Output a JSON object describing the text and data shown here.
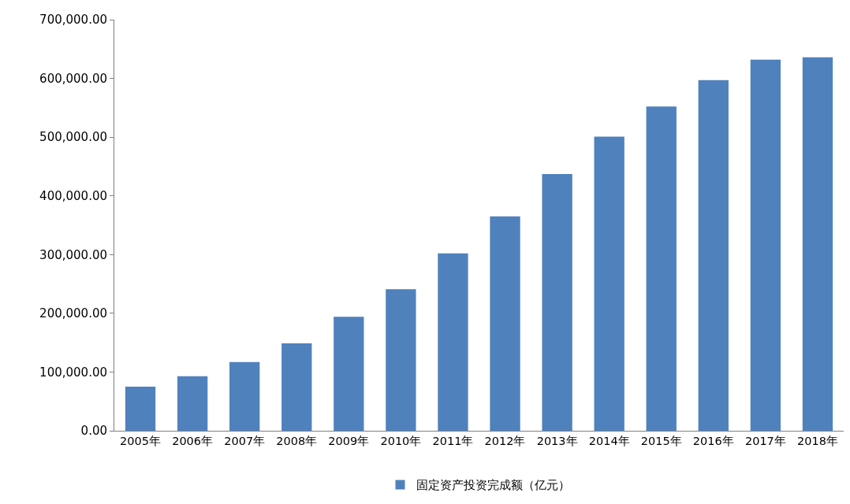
{
  "chart_data": {
    "type": "bar",
    "categories": [
      "2005年",
      "2006年",
      "2007年",
      "2008年",
      "2009年",
      "2010年",
      "2011年",
      "2012年",
      "2013年",
      "2014年",
      "2015年",
      "2016年",
      "2017年",
      "2018年"
    ],
    "series": [
      {
        "name": "固定资产投资完成额（亿元）",
        "color": "#4f81bd",
        "values": [
          75000,
          93000,
          117000,
          149000,
          194000,
          241000,
          302000,
          365000,
          437000,
          501000,
          552000,
          597000,
          632000,
          636000
        ]
      }
    ],
    "ylim": [
      0,
      700000
    ],
    "yticks": [
      {
        "value": 0,
        "label": "0.00"
      },
      {
        "value": 100000,
        "label": "100,000.00"
      },
      {
        "value": 200000,
        "label": "200,000.00"
      },
      {
        "value": 300000,
        "label": "300,000.00"
      },
      {
        "value": 400000,
        "label": "400,000.00"
      },
      {
        "value": 500000,
        "label": "500,000.00"
      },
      {
        "value": 600000,
        "label": "600,000.00"
      },
      {
        "value": 700000,
        "label": "700,000.00"
      }
    ],
    "grid": false,
    "legend": "bottom"
  }
}
